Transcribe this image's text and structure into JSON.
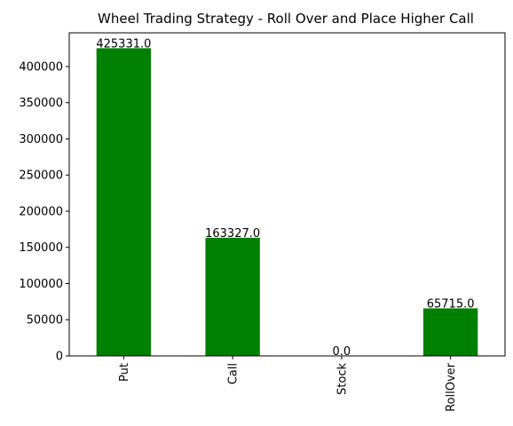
{
  "chart_data": {
    "type": "bar",
    "title": "Wheel Trading Strategy - Roll Over and Place Higher Call",
    "xlabel": "",
    "ylabel": "",
    "categories": [
      "Put",
      "Call",
      "Stock",
      "RollOver"
    ],
    "values": [
      425331.0,
      163327.0,
      0.0,
      65715.0
    ],
    "value_labels": [
      "425331.0",
      "163327.0",
      "0.0",
      "65715.0"
    ],
    "ylim": [
      0,
      446598
    ],
    "yticks": [
      0,
      50000,
      100000,
      150000,
      200000,
      250000,
      300000,
      350000,
      400000
    ],
    "ytick_labels": [
      "0",
      "50000",
      "100000",
      "150000",
      "200000",
      "250000",
      "300000",
      "350000",
      "400000"
    ],
    "bar_color": "#008000",
    "grid": false,
    "legend": "none"
  }
}
